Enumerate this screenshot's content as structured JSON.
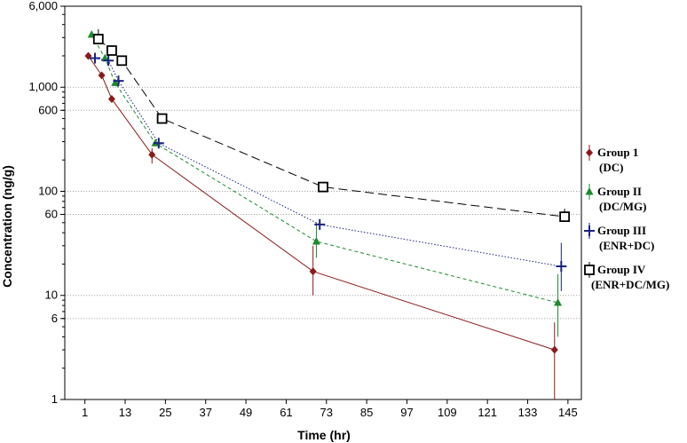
{
  "chart_data": {
    "type": "line",
    "xlabel": "Time (hr)",
    "ylabel": "Concentration (ng/g)",
    "x_scale": "linear",
    "y_scale": "log",
    "xlim": [
      -5,
      149
    ],
    "ylim": [
      1,
      6000
    ],
    "x_ticks": [
      1,
      13,
      25,
      37,
      49,
      61,
      73,
      85,
      97,
      109,
      121,
      133,
      145
    ],
    "x_tick_labels": [
      "1",
      "13",
      "25",
      "37",
      "49",
      "61",
      "73",
      "85",
      "97",
      "109",
      "121",
      "133",
      "145"
    ],
    "y_ticks": [
      1,
      6,
      10,
      60,
      100,
      600,
      1000,
      6000
    ],
    "y_tick_labels": [
      "1",
      "6",
      "10",
      "60",
      "100",
      "600",
      "1,000",
      "6,000"
    ],
    "grid": "horizontal",
    "legend_position": "right",
    "series": [
      {
        "name": "Group 1 (DC)",
        "legend_lines": [
          "Group 1",
          "(DC)"
        ],
        "color": "#8b1a1a",
        "marker": "diamond",
        "line_style": "solid",
        "x": [
          2,
          6,
          9,
          21,
          69,
          141
        ],
        "y": [
          2000,
          1300,
          770,
          225,
          17,
          3
        ],
        "err_hi": [
          null,
          null,
          null,
          260,
          30,
          5.5
        ],
        "err_lo": [
          null,
          null,
          null,
          185,
          10,
          1
        ]
      },
      {
        "name": "Group II (DC/MG)",
        "legend_lines": [
          "Group II",
          "(DC/MG)"
        ],
        "color": "#1e8a2e",
        "marker": "triangle",
        "line_style": "dashed",
        "x": [
          3,
          7,
          10,
          22,
          70,
          142
        ],
        "y": [
          3200,
          1900,
          1100,
          290,
          33,
          8.5
        ],
        "err_hi": [
          null,
          null,
          null,
          null,
          50,
          16
        ],
        "err_lo": [
          null,
          null,
          null,
          null,
          23,
          4
        ]
      },
      {
        "name": "Group III (ENR+DC)",
        "legend_lines": [
          "Group III",
          "(ENR+DC)"
        ],
        "color": "#1a237e",
        "marker": "plus",
        "line_style": "dotted",
        "x": [
          4,
          8,
          11,
          23,
          71,
          143
        ],
        "y": [
          1900,
          1800,
          1150,
          290,
          48,
          19
        ],
        "err_hi": [
          null,
          null,
          null,
          null,
          null,
          32
        ],
        "err_lo": [
          null,
          null,
          null,
          null,
          null,
          11
        ]
      },
      {
        "name": "Group IV (ENR+DC/MG)",
        "legend_lines": [
          "Group IV",
          "(ENR+DC/MG)"
        ],
        "color": "#000000",
        "marker": "square",
        "line_style": "long-dash",
        "x": [
          5,
          9,
          12,
          24,
          72,
          144
        ],
        "y": [
          2900,
          2250,
          1800,
          500,
          110,
          57
        ],
        "err_hi": [
          3600,
          null,
          null,
          null,
          null,
          68
        ],
        "err_lo": [
          null,
          null,
          null,
          null,
          null,
          null
        ]
      }
    ]
  }
}
